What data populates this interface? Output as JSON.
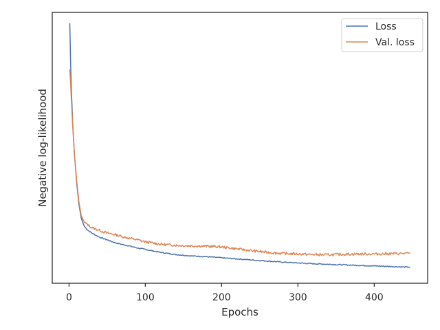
{
  "chart_data": {
    "type": "line",
    "xlabel": "Epochs",
    "ylabel": "Negative log-likelihood",
    "xlim": [
      -22,
      470
    ],
    "ylim": [
      0,
      100
    ],
    "x_ticks": [
      0,
      100,
      200,
      300,
      400
    ],
    "y_ticks_shown": false,
    "grid": false,
    "legend_position": "top-right",
    "colors": {
      "loss": "#4c72b0",
      "val_loss": "#dd8452"
    },
    "series": [
      {
        "name": "Loss",
        "points": [
          [
            1,
            96
          ],
          [
            2,
            82
          ],
          [
            3,
            72
          ],
          [
            5,
            58
          ],
          [
            7,
            48
          ],
          [
            10,
            37
          ],
          [
            13,
            29
          ],
          [
            16,
            24
          ],
          [
            20,
            21
          ],
          [
            25,
            19.5
          ],
          [
            30,
            18.5
          ],
          [
            40,
            17
          ],
          [
            50,
            16
          ],
          [
            60,
            15
          ],
          [
            70,
            14.3
          ],
          [
            80,
            13.7
          ],
          [
            90,
            13
          ],
          [
            100,
            12.5
          ],
          [
            120,
            11.4
          ],
          [
            140,
            10.6
          ],
          [
            160,
            10.1
          ],
          [
            180,
            9.8
          ],
          [
            200,
            9.4
          ],
          [
            220,
            9
          ],
          [
            240,
            8.6
          ],
          [
            260,
            8.2
          ],
          [
            280,
            7.8
          ],
          [
            300,
            7.5
          ],
          [
            320,
            7.2
          ],
          [
            340,
            7
          ],
          [
            360,
            6.8
          ],
          [
            380,
            6.6
          ],
          [
            400,
            6.4
          ],
          [
            420,
            6.2
          ],
          [
            440,
            6
          ],
          [
            447,
            5.9
          ]
        ]
      },
      {
        "name": "Val. loss",
        "points": [
          [
            1,
            79
          ],
          [
            2,
            74
          ],
          [
            3,
            68
          ],
          [
            5,
            57
          ],
          [
            7,
            48
          ],
          [
            10,
            38
          ],
          [
            13,
            30
          ],
          [
            16,
            25
          ],
          [
            20,
            22.5
          ],
          [
            25,
            21.5
          ],
          [
            30,
            20.5
          ],
          [
            40,
            19.5
          ],
          [
            50,
            18.5
          ],
          [
            60,
            18
          ],
          [
            70,
            17.2
          ],
          [
            80,
            16.6
          ],
          [
            90,
            16
          ],
          [
            100,
            15.3
          ],
          [
            120,
            14.4
          ],
          [
            140,
            14
          ],
          [
            160,
            13.8
          ],
          [
            180,
            13.7
          ],
          [
            200,
            13.4
          ],
          [
            220,
            12.7
          ],
          [
            240,
            12
          ],
          [
            260,
            11.4
          ],
          [
            280,
            11
          ],
          [
            300,
            10.8
          ],
          [
            320,
            10.6
          ],
          [
            340,
            10.5
          ],
          [
            360,
            10.7
          ],
          [
            380,
            10.8
          ],
          [
            400,
            10.8
          ],
          [
            420,
            10.9
          ],
          [
            440,
            11
          ],
          [
            447,
            11
          ]
        ]
      }
    ]
  }
}
